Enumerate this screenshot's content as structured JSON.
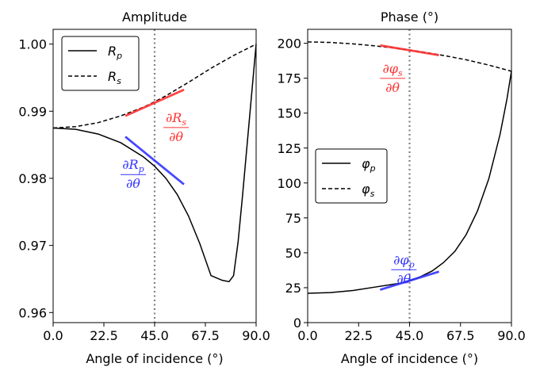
{
  "chart_data": [
    {
      "type": "line",
      "title": "Amplitude",
      "xlabel": "Angle of incidence (°)",
      "ylabel": "",
      "xlim": [
        0,
        90
      ],
      "ylim": [
        0.9585,
        1.0022
      ],
      "xticks": [
        0,
        22.5,
        45,
        67.5,
        90
      ],
      "xtick_labels": [
        "0.0",
        "22.5",
        "45.0",
        "67.5",
        "90.0"
      ],
      "yticks": [
        0.96,
        0.97,
        0.98,
        0.99,
        1.0
      ],
      "ytick_labels": [
        "0.96",
        "0.97",
        "0.98",
        "0.99",
        "1.00"
      ],
      "vline_x": 45,
      "legend": {
        "position": "upper-left"
      },
      "series": [
        {
          "name": "Rp",
          "legend_main": "R",
          "legend_sub": "p",
          "style": "solid",
          "color": "#000000",
          "x": [
            0,
            10,
            20,
            30,
            40,
            45,
            50,
            55,
            60,
            65,
            70,
            75,
            78,
            80,
            82,
            84,
            86,
            88,
            90
          ],
          "y": [
            0.9875,
            0.9873,
            0.9866,
            0.9853,
            0.9832,
            0.9818,
            0.98,
            0.9776,
            0.9744,
            0.9703,
            0.9655,
            0.9648,
            0.9646,
            0.9655,
            0.9705,
            0.9775,
            0.985,
            0.9925,
            1.0
          ]
        },
        {
          "name": "Rs",
          "legend_main": "R",
          "legend_sub": "s",
          "style": "dashed",
          "color": "#000000",
          "x": [
            0,
            10,
            20,
            30,
            40,
            45,
            50,
            60,
            70,
            80,
            90
          ],
          "y": [
            0.9875,
            0.9877,
            0.9883,
            0.9893,
            0.9906,
            0.9914,
            0.9923,
            0.9943,
            0.9964,
            0.9983,
            1.0
          ]
        }
      ],
      "tangents": [
        {
          "color": "#3333ff",
          "x1": 32,
          "y1": 0.9862,
          "x2": 58,
          "y2": 0.9791,
          "label_main": "∂R",
          "label_sub": "p",
          "label_den": "∂θ",
          "label_x": 35.5,
          "label_y": 0.9808
        },
        {
          "color": "#ff3333",
          "x1": 32,
          "y1": 0.9893,
          "x2": 58,
          "y2": 0.9932,
          "label_main": "∂R",
          "label_sub": "s",
          "label_den": "∂θ",
          "label_x": 54.5,
          "label_y": 0.9878
        }
      ]
    },
    {
      "type": "line",
      "title": "Phase (°)",
      "xlabel": "Angle of incidence (°)",
      "ylabel": "",
      "xlim": [
        0,
        90
      ],
      "ylim": [
        0,
        210
      ],
      "xticks": [
        0,
        22.5,
        45,
        67.5,
        90
      ],
      "xtick_labels": [
        "0.0",
        "22.5",
        "45.0",
        "67.5",
        "90.0"
      ],
      "yticks": [
        0,
        25,
        50,
        75,
        100,
        125,
        150,
        175,
        200
      ],
      "ytick_labels": [
        "0",
        "25",
        "50",
        "75",
        "100",
        "125",
        "150",
        "175",
        "200"
      ],
      "vline_x": 45,
      "legend": {
        "position": "center-left"
      },
      "series": [
        {
          "name": "φp",
          "legend_main": "φ",
          "legend_sub": "p",
          "style": "solid",
          "color": "#000000",
          "x": [
            0,
            10,
            20,
            30,
            40,
            45,
            50,
            55,
            60,
            65,
            70,
            75,
            80,
            85,
            88,
            90
          ],
          "y": [
            21,
            21.5,
            23,
            25.5,
            28,
            30,
            33,
            37,
            43,
            51,
            63,
            80,
            103,
            135,
            160,
            180
          ]
        },
        {
          "name": "φs",
          "legend_main": "φ",
          "legend_sub": "s",
          "style": "dashed",
          "color": "#000000",
          "x": [
            0,
            10,
            20,
            30,
            40,
            45,
            50,
            60,
            70,
            80,
            90
          ],
          "y": [
            201,
            200.6,
            199.6,
            198.1,
            196.3,
            195.2,
            194,
            191.3,
            188.2,
            184.4,
            180
          ]
        }
      ],
      "tangents": [
        {
          "color": "#3333ff",
          "x1": 32,
          "y1": 23.5,
          "x2": 58,
          "y2": 36.5,
          "label_main": "∂φ",
          "label_sub": "p",
          "label_den": "∂θ",
          "label_x": 42.5,
          "label_y": 39
        },
        {
          "color": "#ff3333",
          "x1": 32,
          "y1": 198.5,
          "x2": 58,
          "y2": 191.5,
          "label_main": "∂φ",
          "label_sub": "s",
          "label_den": "∂θ",
          "label_x": 37.5,
          "label_y": 176
        }
      ]
    }
  ]
}
